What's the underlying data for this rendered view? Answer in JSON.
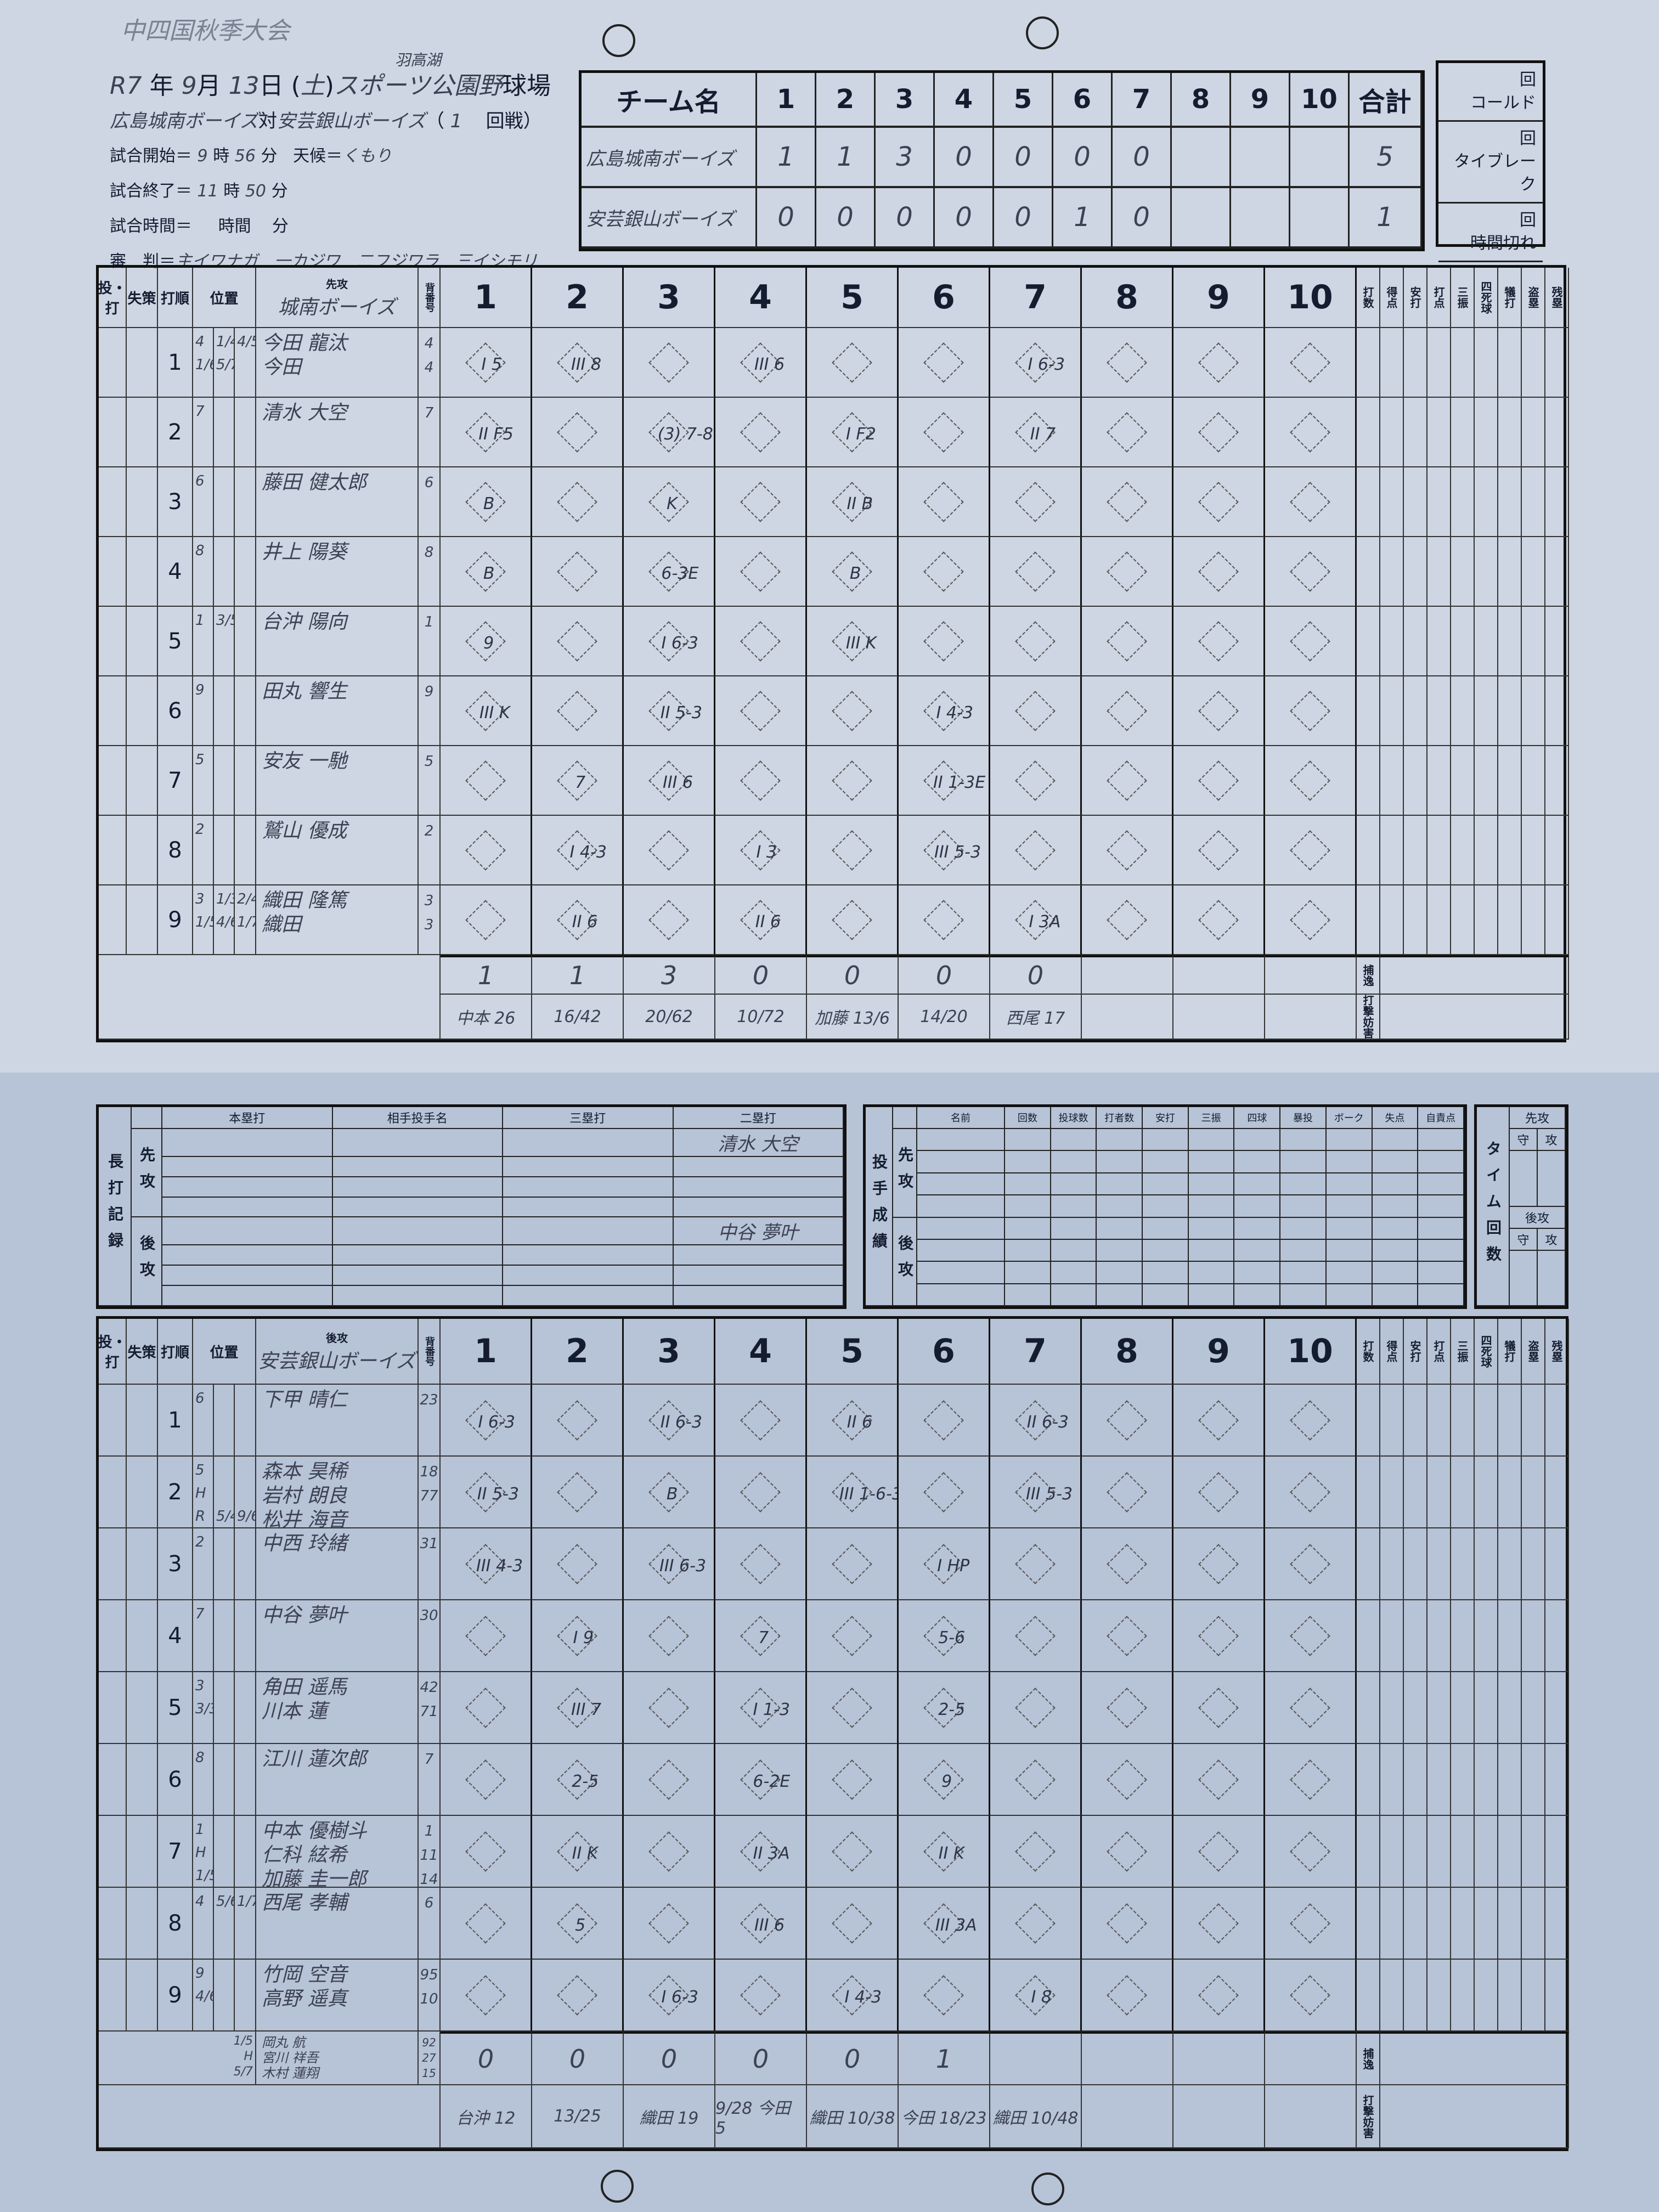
{
  "title": "中四国秋季大会",
  "header": {
    "year": "R7",
    "year_label": "年",
    "month": "9",
    "month_label": "月",
    "day": "13",
    "day_label": "日",
    "weekday": "土",
    "venue_note": "羽高湖",
    "venue": "スポーツ公園野",
    "venue_label": "球場",
    "team_top": "広島城南ボーイズ",
    "vs": "対",
    "team_bottom": "安芸銀山ボーイズ",
    "round": "1",
    "round_label": "回戦",
    "start_label": "試合開始＝",
    "start_h": "9",
    "hour_label": "時",
    "start_m": "56",
    "min_label": "分",
    "weather_label": "天候＝",
    "weather": "くもり",
    "end_label": "試合終了＝",
    "end_h": "11",
    "end_m": "50",
    "duration_label": "試合時間＝",
    "duration_hour_label": "時間",
    "umpire_label": "審　判＝",
    "umpires": "主イワナガ　一カジワ　二フジワラ　三イシモリ"
  },
  "linescore": {
    "team_header": "チーム名",
    "innings": [
      "1",
      "2",
      "3",
      "4",
      "5",
      "6",
      "7",
      "8",
      "9",
      "10"
    ],
    "total_header": "合計",
    "teams": [
      {
        "name": "広島城南ボーイズ",
        "runs": [
          "1",
          "1",
          "3",
          "0",
          "0",
          "0",
          "0",
          "",
          "",
          ""
        ],
        "total": "5"
      },
      {
        "name": "安芸銀山ボーイズ",
        "runs": [
          "0",
          "0",
          "0",
          "0",
          "0",
          "1",
          "0",
          "",
          "",
          ""
        ],
        "total": "1"
      }
    ],
    "end_reasons": [
      "回\nコールド",
      "回\nタイブレーク",
      "回\n時間切れ"
    ]
  },
  "grid_labels": {
    "pitch_bat": "投・打",
    "errors": "失策",
    "order": "打順",
    "position": "位置",
    "number": "背番号",
    "stats": [
      "打数",
      "得点",
      "安打",
      "打点",
      "三振",
      "四死球",
      "犠打",
      "盗塁",
      "残塁"
    ],
    "runs": "得点",
    "pitches": "投球数",
    "passed_ball": "捕逸",
    "interference": "打撃妨害"
  },
  "top": {
    "side": "先攻",
    "team": "城南ボーイズ",
    "lineup": [
      {
        "order": "1",
        "pos": [
          "4\n1/6",
          "1/4\n5/7",
          "4/5"
        ],
        "names": "今田 龍汰\n今田",
        "nums": "4\n4",
        "plays": {
          "1": "I 5",
          "2": "III 8",
          "4": "III 6",
          "7": "I 6-3"
        }
      },
      {
        "order": "2",
        "pos": [
          "7",
          "",
          ""
        ],
        "names": "清水 大空",
        "nums": "7",
        "plays": {
          "1": "II F5",
          "3": "(3) 7-8",
          "5": "I F2",
          "7": "II 7"
        }
      },
      {
        "order": "3",
        "pos": [
          "6",
          "",
          ""
        ],
        "names": "藤田 健太郎",
        "nums": "6",
        "plays": {
          "1": "B",
          "3": "K",
          "5": "II B"
        }
      },
      {
        "order": "4",
        "pos": [
          "8",
          "",
          ""
        ],
        "names": "井上 陽葵",
        "nums": "8",
        "plays": {
          "1": "B",
          "3": "6-3E",
          "5": "B"
        }
      },
      {
        "order": "5",
        "pos": [
          "1",
          "3/5",
          ""
        ],
        "names": "台沖 陽向",
        "nums": "1",
        "plays": {
          "1": "9",
          "3": "I 6-3",
          "5": "III K"
        }
      },
      {
        "order": "6",
        "pos": [
          "9",
          "",
          ""
        ],
        "names": "田丸 響生",
        "nums": "9",
        "plays": {
          "1": "III K",
          "3": "II 5-3",
          "6": "I 4-3"
        }
      },
      {
        "order": "7",
        "pos": [
          "5",
          "",
          ""
        ],
        "names": "安友 一馳",
        "nums": "5",
        "plays": {
          "2": "7",
          "3": "III 6",
          "6": "II 1-3E"
        }
      },
      {
        "order": "8",
        "pos": [
          "2",
          "",
          ""
        ],
        "names": "鷲山 優成",
        "nums": "2",
        "plays": {
          "2": "I 4-3",
          "4": "I 3",
          "6": "III 5-3"
        }
      },
      {
        "order": "9",
        "pos": [
          "3\n1/5",
          "1/3\n4/6",
          "2/4\n1/7"
        ],
        "names": "織田 隆篤\n織田",
        "nums": "3\n3",
        "plays": {
          "2": "II 6",
          "4": "II 6",
          "7": "I 3A"
        }
      }
    ],
    "runs": [
      "1",
      "1",
      "3",
      "0",
      "0",
      "0",
      "0",
      "",
      "",
      ""
    ],
    "pitches": [
      "中本 26",
      "16/42",
      "20/62",
      "10/72",
      "加藤 13/6",
      "14/20",
      "西尾 17",
      "",
      "",
      ""
    ]
  },
  "bottom": {
    "side": "後攻",
    "team": "安芸銀山ボーイズ",
    "lineup": [
      {
        "order": "1",
        "pos": [
          "6",
          "",
          ""
        ],
        "names": "下甲 晴仁",
        "nums": "23",
        "plays": {
          "1": "I 6-3",
          "3": "II 6-3",
          "5": "II 6",
          "7": "II 6-3"
        }
      },
      {
        "order": "2",
        "pos": [
          "5\nH\nR",
          "\n\n5/4",
          "\n\n9/6"
        ],
        "names": "森本 昊稀\n岩村 朗良\n松井 海音",
        "nums": "18\n77\n",
        "plays": {
          "1": "II 5-3",
          "3": "B",
          "5": "III 1-6-3",
          "7": "III 5-3"
        }
      },
      {
        "order": "3",
        "pos": [
          "2",
          "",
          ""
        ],
        "names": "中西 玲緒",
        "nums": "31",
        "plays": {
          "1": "III 4-3",
          "3": "III 6-3",
          "6": "I HP"
        }
      },
      {
        "order": "4",
        "pos": [
          "7",
          "",
          ""
        ],
        "names": "中谷 夢叶",
        "nums": "30",
        "plays": {
          "2": "I 9",
          "4": "7",
          "6": "5-6"
        }
      },
      {
        "order": "5",
        "pos": [
          "3\n3/3",
          "",
          ""
        ],
        "names": "角田 遥馬\n川本 蓮",
        "nums": "42\n71",
        "plays": {
          "2": "III 7",
          "4": "I 1-3",
          "6": "2-5"
        }
      },
      {
        "order": "6",
        "pos": [
          "8",
          "",
          ""
        ],
        "names": "江川 蓮次郎",
        "nums": "7",
        "plays": {
          "2": "2-5",
          "4": "6-2E",
          "6": "9"
        }
      },
      {
        "order": "7",
        "pos": [
          "1\nH\n1/5",
          "",
          ""
        ],
        "names": "中本 優樹斗\n仁科 絃希\n加藤 圭一郎",
        "nums": "1\n11\n14",
        "plays": {
          "2": "II K",
          "4": "II 3A",
          "6": "II K"
        }
      },
      {
        "order": "8",
        "pos": [
          "4",
          "5/6",
          "1/7"
        ],
        "names": "西尾 孝輔",
        "nums": "6",
        "plays": {
          "2": "5",
          "4": "III 6",
          "6": "III 3A"
        }
      },
      {
        "order": "9",
        "pos": [
          "9\n4/6",
          "",
          ""
        ],
        "names": "竹岡 空音\n高野 遥真",
        "nums": "95\n10",
        "plays": {
          "3": "I 6-3",
          "5": "I 4-3",
          "7": "I 8"
        }
      }
    ],
    "extra": {
      "pos": "1/5\nH\n5/7",
      "names": "岡丸 航\n宮川 祥吾\n木村 蓮翔",
      "nums": "92\n27\n15"
    },
    "runs": [
      "0",
      "0",
      "0",
      "0",
      "0",
      "1",
      "",
      "",
      "",
      ""
    ],
    "pitches": [
      "台沖 12",
      "13/25",
      "織田 19",
      "9/28 今田 5",
      "織田 10/38",
      "今田 18/23",
      "織田 10/48",
      "",
      "",
      ""
    ]
  },
  "long_hits": {
    "title": "長打記録",
    "top_side": "先攻",
    "bottom_side": "後攻",
    "columns": [
      "本塁打",
      "相手投手名",
      "三塁打",
      "二塁打"
    ],
    "top_rows": [
      [
        "",
        "",
        "",
        "清水 大空"
      ],
      [
        "",
        "",
        "",
        ""
      ],
      [
        "",
        "",
        "",
        ""
      ],
      [
        "",
        "",
        "",
        ""
      ]
    ],
    "bottom_rows": [
      [
        "",
        "",
        "",
        "中谷 夢叶"
      ],
      [
        "",
        "",
        "",
        ""
      ],
      [
        "",
        "",
        "",
        ""
      ],
      [
        "",
        "",
        "",
        ""
      ]
    ]
  },
  "pitching": {
    "title": "投手成績",
    "top_side": "先攻",
    "bottom_side": "後攻",
    "columns": [
      "名前",
      "回数",
      "投球数",
      "打者数",
      "安打",
      "三振",
      "四球",
      "暴投",
      "ボーク",
      "失点",
      "自責点"
    ]
  },
  "timeouts": {
    "title": "タイム回数",
    "top_side": "先攻",
    "bottom_side": "後攻",
    "defense": "守",
    "offense": "攻"
  }
}
